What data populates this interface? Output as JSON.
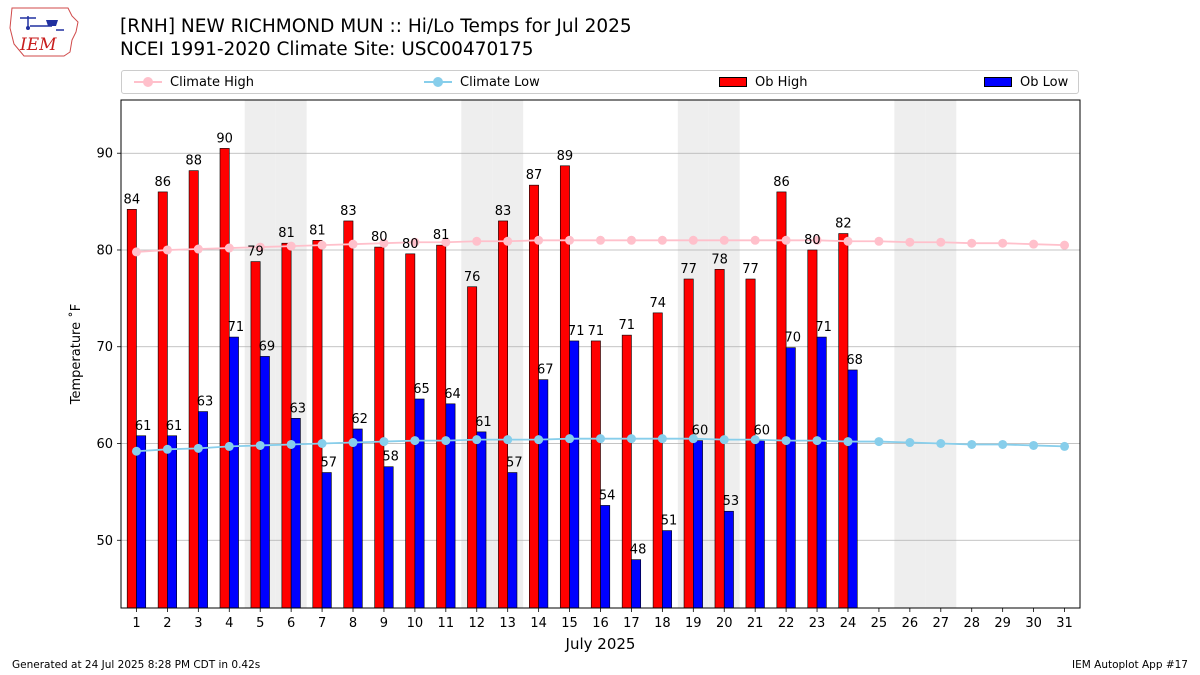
{
  "title": "[RNH] NEW RICHMOND MUN :: Hi/Lo Temps for Jul 2025",
  "subtitle": "NCEI 1991-2020 Climate Site: USC00470175",
  "logo_text": "IEM",
  "footer_left": "Generated at 24 Jul 2025 8:28 PM CDT in 0.42s",
  "footer_right": "IEM Autoplot App #17",
  "colors": {
    "ob_high": "#ff0000",
    "ob_low": "#0000ff",
    "climate_high": "#ffc0cb",
    "climate_low": "#87ceeb",
    "weekend_shade": "#eeeeee",
    "grid": "#b0b0b0"
  },
  "chart_data": {
    "type": "bar",
    "xlabel": "July 2025",
    "ylabel": "Temperature ˚F",
    "ylim": [
      43,
      95.5
    ],
    "yticks": [
      50,
      60,
      70,
      80,
      90
    ],
    "grid": "horizontal",
    "legend_placement": "top",
    "days": [
      1,
      2,
      3,
      4,
      5,
      6,
      7,
      8,
      9,
      10,
      11,
      12,
      13,
      14,
      15,
      16,
      17,
      18,
      19,
      20,
      21,
      22,
      23,
      24,
      25,
      26,
      27,
      28,
      29,
      30,
      31
    ],
    "weekend_days": [
      5,
      6,
      12,
      13,
      19,
      20,
      26,
      27
    ],
    "series": [
      {
        "name": "Ob High",
        "kind": "bar",
        "values": [
          84.2,
          86,
          88.2,
          90.5,
          78.8,
          80.7,
          81,
          83,
          80.3,
          79.6,
          80.5,
          76.2,
          83,
          86.7,
          88.7,
          70.6,
          71.2,
          73.5,
          77,
          78,
          77,
          86,
          80,
          81.7
        ]
      },
      {
        "name": "Ob Low",
        "kind": "bar",
        "values": [
          60.8,
          60.8,
          63.3,
          71,
          69,
          62.6,
          57,
          61.5,
          57.6,
          64.6,
          64.1,
          61.2,
          57,
          66.6,
          70.6,
          53.6,
          48,
          51,
          60.3,
          53,
          60.3,
          69.9,
          71,
          67.6
        ]
      },
      {
        "name": "Climate High",
        "kind": "line",
        "values": [
          79.8,
          80,
          80.1,
          80.2,
          80.3,
          80.4,
          80.5,
          80.6,
          80.7,
          80.8,
          80.8,
          80.9,
          80.9,
          81,
          81,
          81,
          81,
          81,
          81,
          81,
          81,
          81,
          81,
          80.9,
          80.9,
          80.8,
          80.8,
          80.7,
          80.7,
          80.6,
          80.5
        ]
      },
      {
        "name": "Climate Low",
        "kind": "line",
        "values": [
          59.2,
          59.4,
          59.5,
          59.7,
          59.8,
          59.9,
          60,
          60.1,
          60.2,
          60.3,
          60.3,
          60.4,
          60.4,
          60.4,
          60.5,
          60.5,
          60.5,
          60.5,
          60.5,
          60.4,
          60.4,
          60.3,
          60.3,
          60.2,
          60.2,
          60.1,
          60,
          59.9,
          59.9,
          59.8,
          59.7
        ]
      }
    ],
    "bar_labels": {
      "Ob High": [
        "84",
        "86",
        "88",
        "90",
        "79",
        "81",
        "81",
        "83",
        "80",
        "80",
        "81",
        "76",
        "83",
        "87",
        "89",
        "71",
        "71",
        "74",
        "77",
        "78",
        "77",
        "86",
        "80",
        "82"
      ],
      "Ob Low": [
        "61",
        "61",
        "63",
        "71",
        "69",
        "63",
        "57",
        "62",
        "58",
        "65",
        "64",
        "61",
        "57",
        "67",
        "71",
        "54",
        "48",
        "51",
        "60",
        "53",
        "60",
        "70",
        "71",
        "68"
      ]
    }
  }
}
